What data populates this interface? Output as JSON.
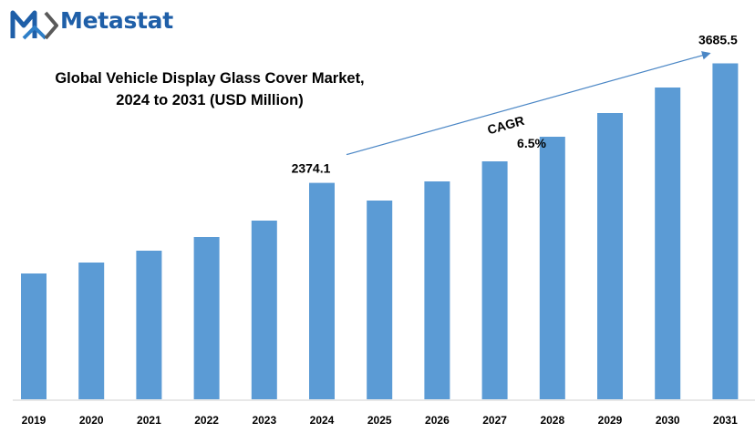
{
  "brand": {
    "name": "Metastat",
    "logo_color": "#1f5fa8"
  },
  "chart_data": {
    "type": "bar",
    "title_lines": [
      "Global Vehicle Display Glass Cover Market,",
      "2024 to 2031 (USD Million)"
    ],
    "categories": [
      "2019",
      "2020",
      "2021",
      "2022",
      "2023",
      "2024",
      "2025",
      "2026",
      "2027",
      "2028",
      "2029",
      "2030",
      "2031"
    ],
    "values": [
      1380,
      1500,
      1630,
      1780,
      1960,
      2374.1,
      2180,
      2390,
      2610,
      2880,
      3140,
      3420,
      3685.5
    ],
    "data_labels": [
      {
        "category": "2024",
        "text": "2374.1"
      },
      {
        "category": "2031",
        "text": "3685.5"
      }
    ],
    "annotation": {
      "label": "CAGR",
      "value": "6.5%",
      "from_category": "2024",
      "to_category": "2031"
    },
    "bar_color": "#5b9bd5",
    "ylim": [
      0,
      3900
    ],
    "grid": false,
    "legend": "none"
  }
}
